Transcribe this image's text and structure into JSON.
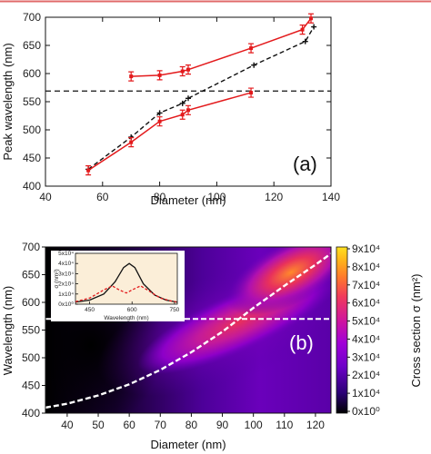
{
  "page": {
    "top_rule_color": "#e06a6a"
  },
  "chart_data": [
    {
      "type": "line",
      "panel_label": "(a)",
      "xlabel": "Diameter (nm)",
      "ylabel": "Peak wavelength (nm)",
      "xlim": [
        40,
        140
      ],
      "ylim": [
        400,
        700
      ],
      "xticks": [
        "40",
        "60",
        "80",
        "100",
        "120",
        "140"
      ],
      "yticks": [
        "400",
        "450",
        "500",
        "550",
        "600",
        "650",
        "700"
      ],
      "grid": false,
      "colors": {
        "red": "#e31a1c",
        "black": "#111111"
      },
      "series": [
        {
          "style": "red-solid-errorbars",
          "segments": [
            {
              "x": [
                55,
                70,
                80,
                88,
                90,
                112
              ],
              "y": [
                428,
                478,
                515,
                527,
                535,
                566
              ]
            },
            {
              "x": [
                70,
                80,
                88,
                90,
                112,
                130,
                133
              ],
              "y": [
                595,
                597,
                604,
                607,
                645,
                678,
                698
              ]
            }
          ]
        },
        {
          "style": "black-dashed-points",
          "x": [
            55,
            70,
            80,
            88,
            90,
            113,
            131,
            134
          ],
          "y": [
            430,
            487,
            530,
            547,
            556,
            615,
            657,
            683
          ]
        }
      ],
      "hline": {
        "y": 569,
        "style": "dashed",
        "color": "#111111"
      }
    },
    {
      "type": "heatmap",
      "panel_label": "(b)",
      "xlabel": "Diameter (nm)",
      "ylabel": "Wavelength (nm)",
      "xlim": [
        33,
        125
      ],
      "ylim": [
        400,
        700
      ],
      "xticks": [
        "40",
        "50",
        "60",
        "70",
        "80",
        "90",
        "100",
        "110",
        "120"
      ],
      "yticks": [
        "400",
        "450",
        "500",
        "550",
        "600",
        "650",
        "700"
      ],
      "colorbar": {
        "label": "Cross section σ (nm²)",
        "ticks": [
          "0x10⁰",
          "1x10⁴",
          "2x10⁴",
          "3x10⁴",
          "4x10⁴",
          "5x10⁴",
          "6x10⁴",
          "7x10⁴",
          "8x10⁴",
          "9x10⁴"
        ],
        "range": [
          0,
          90000
        ],
        "colors": [
          "#000000",
          "#2a0074",
          "#6d00c8",
          "#a000d8",
          "#d0169c",
          "#f03a5c",
          "#ff7a2a",
          "#ffb41a",
          "#ffe020"
        ]
      },
      "overlays": {
        "hline": {
          "y": 570,
          "color": "#ffffff",
          "style": "dashed"
        },
        "curve": {
          "color": "#ffffff",
          "style": "dashed",
          "x": [
            33,
            40,
            50,
            60,
            70,
            80,
            90,
            100,
            110,
            120,
            125
          ],
          "y": [
            410,
            417,
            432,
            452,
            478,
            510,
            547,
            590,
            630,
            668,
            688
          ]
        }
      },
      "inset": {
        "xlabel": "Wavelength (nm)",
        "ylabel": "σ (nm²)",
        "xticks": [
          "450",
          "600",
          "750"
        ],
        "yticks": [
          "0x10⁰",
          "1x10⁴",
          "2x10⁴",
          "3x10⁴",
          "4x10⁴",
          "5x10⁴"
        ],
        "xlim": [
          400,
          760
        ],
        "ylim": [
          0,
          50000
        ],
        "series": [
          {
            "color": "#111111",
            "style": "solid",
            "x": [
              400,
              450,
              500,
              540,
              570,
              590,
              610,
              640,
              680,
              720,
              760
            ],
            "y": [
              2000,
              4000,
              10000,
              22000,
              36000,
              40000,
              36000,
              20000,
              9000,
              4000,
              2000
            ]
          },
          {
            "color": "#e31a1c",
            "style": "dashed",
            "x": [
              400,
              450,
              500,
              530,
              555,
              580,
              600,
              630,
              660,
              700,
              740,
              760
            ],
            "y": [
              2500,
              6000,
              14000,
              18000,
              14000,
              11000,
              14000,
              18000,
              13000,
              6000,
              3000,
              2000
            ]
          }
        ]
      }
    }
  ]
}
